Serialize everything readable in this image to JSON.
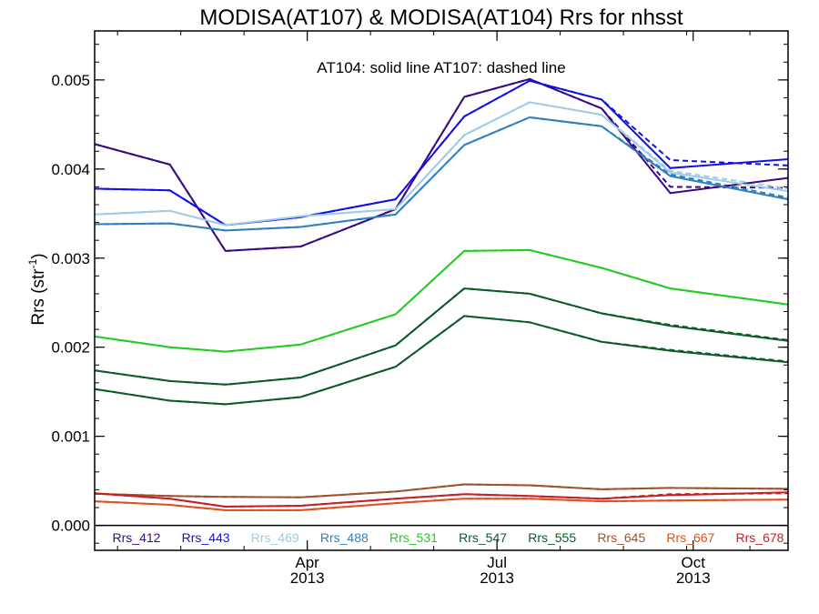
{
  "chart_data": {
    "type": "line",
    "title": "MODISA(AT107) & MODISA(AT104)  Rrs for nhsst",
    "annotation": "AT104: solid line   AT107: dashed line",
    "ylabel_main": "Rrs (str",
    "ylabel_sup": "-1",
    "ylabel_close": ")",
    "xlabel": "",
    "ylim": [
      -0.00028,
      0.00555
    ],
    "xlim": [
      0,
      10.6
    ],
    "yticks": [
      {
        "value": 0.0,
        "label": "0.000"
      },
      {
        "value": 0.001,
        "label": "0.001"
      },
      {
        "value": 0.002,
        "label": "0.002"
      },
      {
        "value": 0.003,
        "label": "0.003"
      },
      {
        "value": 0.004,
        "label": "0.004"
      },
      {
        "value": 0.005,
        "label": "0.005"
      }
    ],
    "xticks": [
      {
        "x": 3.25,
        "month": "Apr",
        "year": "2013"
      },
      {
        "x": 6.15,
        "month": "Jul",
        "year": "2013"
      },
      {
        "x": 9.15,
        "month": "Oct",
        "year": "2013"
      }
    ],
    "x": [
      0,
      1.15,
      2.0,
      3.15,
      4.6,
      5.65,
      6.65,
      7.75,
      8.8,
      10.6
    ],
    "series": [
      {
        "name": "Rrs_412",
        "color": "#3a0a80",
        "values": [
          0.00428,
          0.00405,
          0.00308,
          0.00313,
          0.00355,
          0.00481,
          0.00501,
          0.00468,
          0.00373,
          0.0039
        ],
        "dashed": [
          0.00428,
          0.00405,
          0.00308,
          0.00313,
          0.00355,
          0.00481,
          0.00501,
          0.00468,
          0.0038,
          0.00379
        ]
      },
      {
        "name": "Rrs_443",
        "color": "#1010e8",
        "values": [
          0.00378,
          0.00376,
          0.00337,
          0.00346,
          0.00366,
          0.00459,
          0.00499,
          0.00478,
          0.00401,
          0.00411
        ],
        "dashed": [
          0.00378,
          0.00376,
          0.00337,
          0.00346,
          0.00366,
          0.00459,
          0.00499,
          0.00478,
          0.0041,
          0.00404
        ]
      },
      {
        "name": "Rrs_469",
        "color": "#9ecbe8",
        "values": [
          0.00349,
          0.00353,
          0.00337,
          0.00347,
          0.00355,
          0.00438,
          0.00475,
          0.00461,
          0.00396,
          0.00375
        ],
        "dashed": [
          0.00349,
          0.00353,
          0.00337,
          0.00347,
          0.00355,
          0.00438,
          0.00475,
          0.00461,
          0.00398,
          0.00378
        ]
      },
      {
        "name": "Rrs_488",
        "color": "#2e7fc0",
        "values": [
          0.00338,
          0.00339,
          0.00331,
          0.00335,
          0.00349,
          0.00427,
          0.00458,
          0.00448,
          0.00392,
          0.00366
        ],
        "dashed": [
          0.00338,
          0.00339,
          0.00331,
          0.00335,
          0.00349,
          0.00427,
          0.00458,
          0.00448,
          0.00394,
          0.00368
        ]
      },
      {
        "name": "Rrs_531",
        "color": "#22cc22",
        "values": [
          0.00212,
          0.002,
          0.00195,
          0.00203,
          0.00237,
          0.00308,
          0.00309,
          0.00289,
          0.00266,
          0.00248
        ],
        "dashed": [
          0.00212,
          0.002,
          0.00195,
          0.00203,
          0.00237,
          0.00308,
          0.00309,
          0.00289,
          0.00266,
          0.00248
        ]
      },
      {
        "name": "Rrs_547",
        "color": "#0b5a2a",
        "values": [
          0.00174,
          0.00162,
          0.00158,
          0.00166,
          0.00202,
          0.00266,
          0.0026,
          0.00238,
          0.00224,
          0.00207
        ],
        "dashed": [
          0.00174,
          0.00162,
          0.00158,
          0.00166,
          0.00202,
          0.00266,
          0.0026,
          0.00238,
          0.00225,
          0.00208
        ]
      },
      {
        "name": "Rrs_555",
        "color": "#0b5a2a",
        "values": [
          0.00153,
          0.0014,
          0.00136,
          0.00144,
          0.00178,
          0.00235,
          0.00228,
          0.00206,
          0.00196,
          0.00183
        ],
        "dashed": [
          0.00153,
          0.0014,
          0.00136,
          0.00144,
          0.00178,
          0.00235,
          0.00228,
          0.00206,
          0.00197,
          0.00184
        ]
      },
      {
        "name": "Rrs_645",
        "color": "#a0522d",
        "values": [
          0.000355,
          0.00033,
          0.00032,
          0.000315,
          0.00038,
          0.00046,
          0.00045,
          0.000405,
          0.00042,
          0.00041
        ],
        "dashed": [
          0.000355,
          0.00033,
          0.00032,
          0.000315,
          0.00038,
          0.00046,
          0.00045,
          0.000405,
          0.00042,
          0.00041
        ]
      },
      {
        "name": "Rrs_667",
        "color": "#e0501a",
        "values": [
          0.00027,
          0.00023,
          0.00017,
          0.00017,
          0.00025,
          0.0003,
          0.0003,
          0.00027,
          0.00028,
          0.00029
        ],
        "dashed": [
          0.00027,
          0.00023,
          0.00017,
          0.00017,
          0.00025,
          0.0003,
          0.0003,
          0.00027,
          0.00028,
          0.00029
        ]
      },
      {
        "name": "Rrs_678",
        "color": "#c81e28",
        "values": [
          0.00036,
          0.0003,
          0.00021,
          0.00022,
          0.0003,
          0.00035,
          0.00033,
          0.0003,
          0.00034,
          0.00037
        ],
        "dashed": [
          0.00036,
          0.0003,
          0.00021,
          0.00022,
          0.0003,
          0.00035,
          0.00033,
          0.0003,
          0.00035,
          0.00036
        ]
      }
    ],
    "legend_position": "bottom",
    "grid": false
  }
}
